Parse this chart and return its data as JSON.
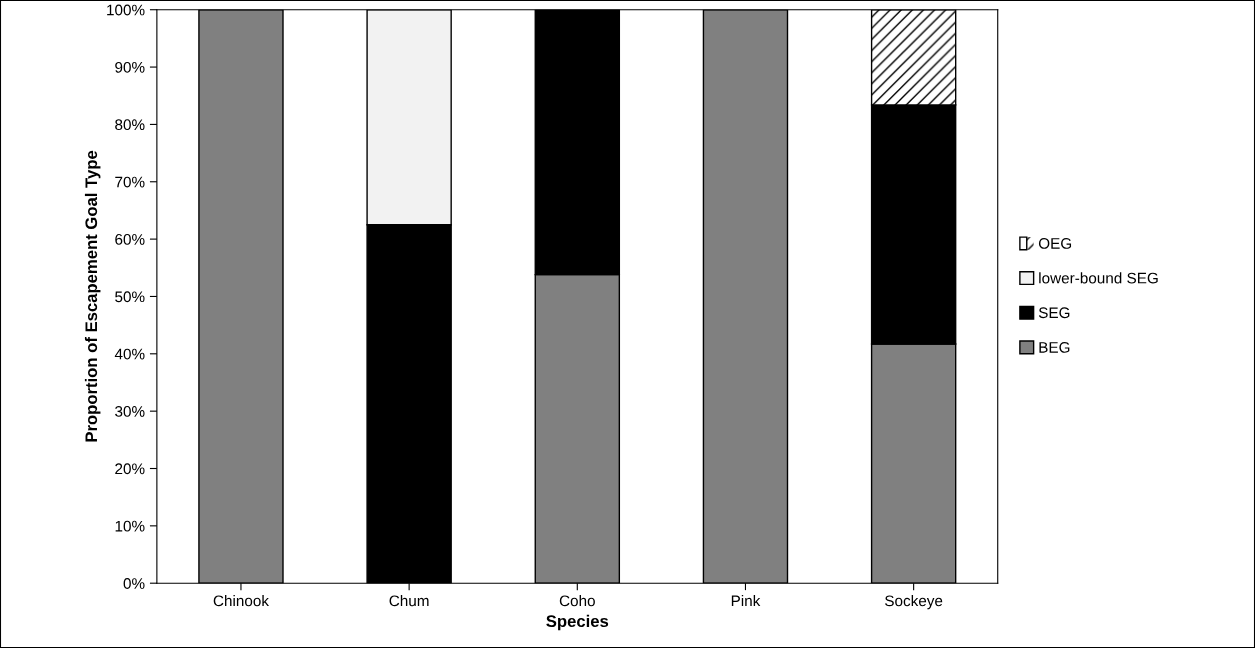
{
  "chart_data": {
    "type": "bar",
    "stacked": true,
    "xlabel": "Species",
    "ylabel": "Proportion of Escapement Goal Type",
    "categories": [
      "Chinook",
      "Chum",
      "Coho",
      "Pink",
      "Sockeye"
    ],
    "series": [
      {
        "name": "BEG",
        "color": "#808080",
        "values": [
          100,
          null,
          53.8,
          100,
          41.7
        ]
      },
      {
        "name": "SEG",
        "color": "#000000",
        "values": [
          null,
          62.5,
          46.2,
          null,
          41.7
        ]
      },
      {
        "name": "lower-bound SEG",
        "color": "#f2f2f2",
        "values": [
          null,
          37.5,
          null,
          null,
          null
        ]
      },
      {
        "name": "OEG",
        "color": "#ffffff",
        "values": [
          null,
          null,
          null,
          null,
          16.6
        ]
      }
    ],
    "ylim": [
      0,
      100
    ],
    "yticks": [
      {
        "value": 0,
        "label": "0%"
      },
      {
        "value": 10,
        "label": "10%"
      },
      {
        "value": 20,
        "label": "20%"
      },
      {
        "value": 30,
        "label": "30%"
      },
      {
        "value": 40,
        "label": "40%"
      },
      {
        "value": 50,
        "label": "50%"
      },
      {
        "value": 60,
        "label": "60%"
      },
      {
        "value": 70,
        "label": "70%"
      },
      {
        "value": 80,
        "label": "80%"
      },
      {
        "value": 90,
        "label": "90%"
      },
      {
        "value": 100,
        "label": "100%"
      }
    ],
    "legend": "right",
    "grid": false
  }
}
